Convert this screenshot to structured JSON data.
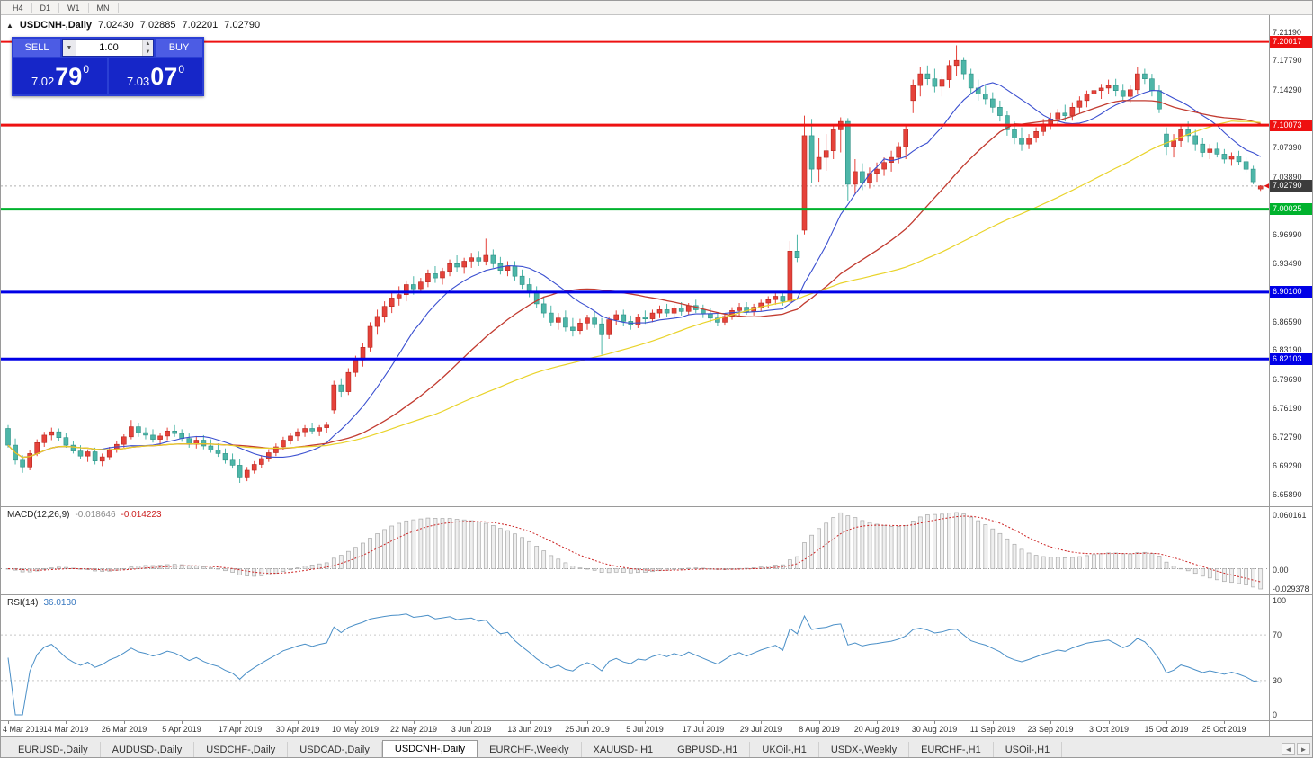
{
  "toolbar": {
    "timeframes": [
      "H4",
      "D1",
      "W1",
      "MN"
    ]
  },
  "icons": {
    "symbol_arrow": "▲",
    "spinner_up": "▲",
    "spinner_down": "▼",
    "dropdown": "▼",
    "tab_scroll_left": "◄",
    "tab_scroll_right": "►"
  },
  "chart_header": {
    "symbol_label": "USDCNH-,Daily",
    "open": "7.02430",
    "high": "7.02885",
    "low": "7.02201",
    "close": "7.02790"
  },
  "trade_panel": {
    "sell_label": "SELL",
    "buy_label": "BUY",
    "volume": "1.00",
    "sell_price": {
      "prefix": "7.02",
      "big": "79",
      "sup": "0"
    },
    "buy_price": {
      "prefix": "7.03",
      "big": "07",
      "sup": "0"
    }
  },
  "macd_panel": {
    "label": "MACD(12,26,9)",
    "value1": "-0.018646",
    "value2": "-0.014223",
    "axis": [
      "0.060161",
      "0.00",
      "-0.029378"
    ]
  },
  "rsi_panel": {
    "label": "RSI(14)",
    "value": "36.0130",
    "axis": [
      "100",
      "70",
      "30",
      "0"
    ],
    "levels": [
      70,
      30
    ]
  },
  "date_axis": {
    "tick_step": 8,
    "ticks": [
      "4 Mar 2019",
      "14 Mar 2019",
      "26 Mar 2019",
      "5 Apr 2019",
      "17 Apr 2019",
      "30 Apr 2019",
      "10 May 2019",
      "22 May 2019",
      "3 Jun 2019",
      "13 Jun 2019",
      "25 Jun 2019",
      "5 Jul 2019",
      "17 Jul 2019",
      "29 Jul 2019",
      "8 Aug 2019",
      "20 Aug 2019",
      "30 Aug 2019",
      "11 Sep 2019",
      "23 Sep 2019",
      "3 Oct 2019",
      "15 Oct 2019",
      "25 Oct 2019"
    ]
  },
  "tabs": {
    "items": [
      {
        "label": "EURUSD-,Daily",
        "active": false
      },
      {
        "label": "AUDUSD-,Daily",
        "active": false
      },
      {
        "label": "USDCHF-,Daily",
        "active": false
      },
      {
        "label": "USDCAD-,Daily",
        "active": false
      },
      {
        "label": "USDCNH-,Daily",
        "active": true
      },
      {
        "label": "EURCHF-,Weekly",
        "active": false
      },
      {
        "label": "XAUUSD-,H1",
        "active": false
      },
      {
        "label": "GBPUSD-,H1",
        "active": false
      },
      {
        "label": "UKOil-,H1",
        "active": false
      },
      {
        "label": "USDX-,Weekly",
        "active": false
      },
      {
        "label": "EURCHF-,H1",
        "active": false
      },
      {
        "label": "USOil-,H1",
        "active": false
      }
    ]
  },
  "chart_data": {
    "type": "candlestick",
    "symbol": "USDCNH-,Daily",
    "ohlc_header": {
      "open": 7.0243,
      "high": 7.02885,
      "low": 7.02201,
      "close": 7.0279
    },
    "y_range": [
      6.645,
      7.232
    ],
    "axis_labels": [
      "7.21190",
      "7.17790",
      "7.14290",
      "7.07390",
      "7.03890",
      "6.96990",
      "6.93490",
      "6.86590",
      "6.83190",
      "6.79690",
      "6.76190",
      "6.72790",
      "6.69290",
      "6.65890"
    ],
    "levels": [
      {
        "price": 7.20017,
        "text": "7.20017",
        "color": "#ee1111",
        "width": 2
      },
      {
        "price": 7.10073,
        "text": "7.10073",
        "color": "#ee1111",
        "width": 3
      },
      {
        "price": 7.00025,
        "text": "7.00025",
        "color": "#00b22d",
        "width": 3
      },
      {
        "price": 6.901,
        "text": "6.90100",
        "color": "#0000e6",
        "width": 3
      },
      {
        "price": 6.82103,
        "text": "6.82103",
        "color": "#0000e6",
        "width": 3
      }
    ],
    "current_price": {
      "price": 7.0279,
      "text": "7.02790",
      "badge_color": "#3c3c3c",
      "line_color": "#b0b0b0"
    },
    "colors": {
      "bull": "#e5423a",
      "bull_border": "#b5271f",
      "bear": "#4db6a8",
      "bear_border": "#2d8f84"
    },
    "moving_averages": [
      {
        "period": 12,
        "color": "#3a4fd0",
        "width": 1.1
      },
      {
        "period": 30,
        "color": "#c23b30",
        "width": 1.3
      },
      {
        "period": 60,
        "color": "#e9d32a",
        "width": 1.2
      }
    ],
    "indicators": {
      "macd": {
        "fast": 12,
        "slow": 26,
        "signal": 9,
        "current": -0.018646,
        "signal_current": -0.014223
      },
      "rsi": {
        "period": 14,
        "current": 36.013
      }
    },
    "candles": [
      [
        6.738,
        6.742,
        6.715,
        6.718
      ],
      [
        6.718,
        6.726,
        6.695,
        6.7
      ],
      [
        6.7,
        6.706,
        6.685,
        6.692
      ],
      [
        6.692,
        6.712,
        6.688,
        6.708
      ],
      [
        6.708,
        6.725,
        6.705,
        6.721
      ],
      [
        6.721,
        6.734,
        6.716,
        6.73
      ],
      [
        6.73,
        6.739,
        6.724,
        6.734
      ],
      [
        6.734,
        6.738,
        6.723,
        6.727
      ],
      [
        6.727,
        6.733,
        6.715,
        6.718
      ],
      [
        6.718,
        6.723,
        6.708,
        6.711
      ],
      [
        6.711,
        6.718,
        6.701,
        6.705
      ],
      [
        6.705,
        6.713,
        6.698,
        6.71
      ],
      [
        6.71,
        6.715,
        6.695,
        6.699
      ],
      [
        6.699,
        6.708,
        6.693,
        6.704
      ],
      [
        6.704,
        6.716,
        6.7,
        6.713
      ],
      [
        6.713,
        6.723,
        6.709,
        6.719
      ],
      [
        6.719,
        6.731,
        6.715,
        6.728
      ],
      [
        6.728,
        6.748,
        6.725,
        6.74
      ],
      [
        6.74,
        6.745,
        6.728,
        6.733
      ],
      [
        6.733,
        6.739,
        6.725,
        6.73
      ],
      [
        6.73,
        6.737,
        6.721,
        6.725
      ],
      [
        6.725,
        6.733,
        6.718,
        6.729
      ],
      [
        6.729,
        6.739,
        6.724,
        6.735
      ],
      [
        6.735,
        6.742,
        6.728,
        6.732
      ],
      [
        6.732,
        6.737,
        6.722,
        6.726
      ],
      [
        6.726,
        6.732,
        6.715,
        6.719
      ],
      [
        6.719,
        6.729,
        6.714,
        6.724
      ],
      [
        6.724,
        6.73,
        6.713,
        6.717
      ],
      [
        6.717,
        6.725,
        6.709,
        6.712
      ],
      [
        6.712,
        6.72,
        6.704,
        6.708
      ],
      [
        6.708,
        6.714,
        6.696,
        6.7
      ],
      [
        6.7,
        6.708,
        6.69,
        6.694
      ],
      [
        6.694,
        6.701,
        6.673,
        6.679
      ],
      [
        6.679,
        6.692,
        6.675,
        6.688
      ],
      [
        6.688,
        6.699,
        6.684,
        6.695
      ],
      [
        6.695,
        6.706,
        6.691,
        6.702
      ],
      [
        6.702,
        6.713,
        6.698,
        6.709
      ],
      [
        6.709,
        6.72,
        6.705,
        6.716
      ],
      [
        6.716,
        6.728,
        6.712,
        6.724
      ],
      [
        6.724,
        6.733,
        6.719,
        6.729
      ],
      [
        6.729,
        6.738,
        6.723,
        6.734
      ],
      [
        6.734,
        6.742,
        6.728,
        6.738
      ],
      [
        6.738,
        6.745,
        6.731,
        6.735
      ],
      [
        6.735,
        6.742,
        6.729,
        6.739
      ],
      [
        6.739,
        6.746,
        6.733,
        6.742
      ],
      [
        6.76,
        6.795,
        6.756,
        6.79
      ],
      [
        6.79,
        6.798,
        6.775,
        6.782
      ],
      [
        6.782,
        6.81,
        6.778,
        6.805
      ],
      [
        6.805,
        6.825,
        6.8,
        6.82
      ],
      [
        6.82,
        6.84,
        6.812,
        6.835
      ],
      [
        6.835,
        6.865,
        6.83,
        6.86
      ],
      [
        6.86,
        6.88,
        6.85,
        6.872
      ],
      [
        6.872,
        6.89,
        6.865,
        6.884
      ],
      [
        6.884,
        6.9,
        6.876,
        6.894
      ],
      [
        6.894,
        6.908,
        6.885,
        6.898
      ],
      [
        6.898,
        6.915,
        6.89,
        6.91
      ],
      [
        6.91,
        6.92,
        6.898,
        6.905
      ],
      [
        6.905,
        6.918,
        6.9,
        6.913
      ],
      [
        6.913,
        6.928,
        6.907,
        6.923
      ],
      [
        6.923,
        6.932,
        6.912,
        6.918
      ],
      [
        6.918,
        6.93,
        6.91,
        6.926
      ],
      [
        6.926,
        6.94,
        6.92,
        6.935
      ],
      [
        6.935,
        6.945,
        6.925,
        6.931
      ],
      [
        6.931,
        6.942,
        6.923,
        6.938
      ],
      [
        6.938,
        6.948,
        6.93,
        6.942
      ],
      [
        6.942,
        6.95,
        6.932,
        6.938
      ],
      [
        6.938,
        6.965,
        6.933,
        6.945
      ],
      [
        6.945,
        6.952,
        6.93,
        6.935
      ],
      [
        6.935,
        6.943,
        6.922,
        6.927
      ],
      [
        6.927,
        6.938,
        6.92,
        6.932
      ],
      [
        6.932,
        6.938,
        6.915,
        6.92
      ],
      [
        6.92,
        6.928,
        6.905,
        6.91
      ],
      [
        6.91,
        6.918,
        6.895,
        6.9
      ],
      [
        6.9,
        6.908,
        6.882,
        6.887
      ],
      [
        6.887,
        6.895,
        6.87,
        6.876
      ],
      [
        6.876,
        6.885,
        6.86,
        6.865
      ],
      [
        6.865,
        6.876,
        6.856,
        6.87
      ],
      [
        6.87,
        6.879,
        6.854,
        6.859
      ],
      [
        6.859,
        6.87,
        6.848,
        6.855
      ],
      [
        6.855,
        6.869,
        6.85,
        6.864
      ],
      [
        6.864,
        6.874,
        6.856,
        6.87
      ],
      [
        6.87,
        6.878,
        6.858,
        6.863
      ],
      [
        6.863,
        6.87,
        6.826,
        6.85
      ],
      [
        6.85,
        6.872,
        6.845,
        6.868
      ],
      [
        6.868,
        6.879,
        6.862,
        6.874
      ],
      [
        6.874,
        6.88,
        6.86,
        6.866
      ],
      [
        6.866,
        6.873,
        6.856,
        6.862
      ],
      [
        6.862,
        6.875,
        6.858,
        6.871
      ],
      [
        6.871,
        6.879,
        6.863,
        6.869
      ],
      [
        6.869,
        6.88,
        6.865,
        6.876
      ],
      [
        6.876,
        6.885,
        6.87,
        6.88
      ],
      [
        6.88,
        6.887,
        6.871,
        6.876
      ],
      [
        6.876,
        6.886,
        6.872,
        6.882
      ],
      [
        6.882,
        6.889,
        6.873,
        6.878
      ],
      [
        6.878,
        6.888,
        6.874,
        6.885
      ],
      [
        6.885,
        6.892,
        6.876,
        6.88
      ],
      [
        6.88,
        6.886,
        6.87,
        6.875
      ],
      [
        6.875,
        6.882,
        6.865,
        6.87
      ],
      [
        6.87,
        6.877,
        6.86,
        6.865
      ],
      [
        6.865,
        6.876,
        6.861,
        6.872
      ],
      [
        6.872,
        6.883,
        6.868,
        6.879
      ],
      [
        6.879,
        6.888,
        6.872,
        6.883
      ],
      [
        6.883,
        6.889,
        6.874,
        6.878
      ],
      [
        6.878,
        6.887,
        6.873,
        6.883
      ],
      [
        6.883,
        6.892,
        6.878,
        6.888
      ],
      [
        6.888,
        6.896,
        6.882,
        6.892
      ],
      [
        6.892,
        6.9,
        6.886,
        6.896
      ],
      [
        6.896,
        6.902,
        6.885,
        6.89
      ],
      [
        6.89,
        6.962,
        6.888,
        6.95
      ],
      [
        6.95,
        6.97,
        6.937,
        6.942
      ],
      [
        6.975,
        7.112,
        6.97,
        7.088
      ],
      [
        7.088,
        7.108,
        7.032,
        7.048
      ],
      [
        7.048,
        7.085,
        7.033,
        7.062
      ],
      [
        7.062,
        7.09,
        7.046,
        7.07
      ],
      [
        7.07,
        7.1,
        7.06,
        7.095
      ],
      [
        7.095,
        7.11,
        7.068,
        7.105
      ],
      [
        7.105,
        7.109,
        7.01,
        7.03
      ],
      [
        7.03,
        7.06,
        7.018,
        7.045
      ],
      [
        7.045,
        7.055,
        7.023,
        7.032
      ],
      [
        7.032,
        7.05,
        7.025,
        7.043
      ],
      [
        7.043,
        7.056,
        7.033,
        7.048
      ],
      [
        7.048,
        7.062,
        7.04,
        7.056
      ],
      [
        7.056,
        7.07,
        7.045,
        7.062
      ],
      [
        7.062,
        7.08,
        7.055,
        7.075
      ],
      [
        7.075,
        7.1,
        7.06,
        7.096
      ],
      [
        7.13,
        7.155,
        7.115,
        7.148
      ],
      [
        7.148,
        7.17,
        7.135,
        7.162
      ],
      [
        7.162,
        7.172,
        7.148,
        7.156
      ],
      [
        7.156,
        7.168,
        7.14,
        7.147
      ],
      [
        7.147,
        7.16,
        7.135,
        7.155
      ],
      [
        7.155,
        7.178,
        7.145,
        7.172
      ],
      [
        7.172,
        7.196,
        7.16,
        7.178
      ],
      [
        7.178,
        7.182,
        7.155,
        7.162
      ],
      [
        7.162,
        7.168,
        7.138,
        7.145
      ],
      [
        7.145,
        7.155,
        7.13,
        7.138
      ],
      [
        7.138,
        7.148,
        7.125,
        7.132
      ],
      [
        7.132,
        7.14,
        7.115,
        7.122
      ],
      [
        7.122,
        7.13,
        7.105,
        7.112
      ],
      [
        7.112,
        7.118,
        7.088,
        7.095
      ],
      [
        7.095,
        7.105,
        7.078,
        7.085
      ],
      [
        7.085,
        7.098,
        7.07,
        7.078
      ],
      [
        7.078,
        7.09,
        7.072,
        7.085
      ],
      [
        7.085,
        7.098,
        7.08,
        7.093
      ],
      [
        7.093,
        7.108,
        7.088,
        7.102
      ],
      [
        7.102,
        7.115,
        7.095,
        7.108
      ],
      [
        7.108,
        7.12,
        7.1,
        7.115
      ],
      [
        7.115,
        7.125,
        7.105,
        7.112
      ],
      [
        7.112,
        7.128,
        7.106,
        7.122
      ],
      [
        7.122,
        7.135,
        7.115,
        7.13
      ],
      [
        7.13,
        7.142,
        7.122,
        7.138
      ],
      [
        7.138,
        7.148,
        7.13,
        7.142
      ],
      [
        7.142,
        7.15,
        7.132,
        7.145
      ],
      [
        7.145,
        7.155,
        7.138,
        7.148
      ],
      [
        7.148,
        7.156,
        7.135,
        7.142
      ],
      [
        7.142,
        7.15,
        7.13,
        7.135
      ],
      [
        7.135,
        7.148,
        7.128,
        7.143
      ],
      [
        7.143,
        7.17,
        7.138,
        7.162
      ],
      [
        7.162,
        7.168,
        7.15,
        7.156
      ],
      [
        7.156,
        7.162,
        7.135,
        7.142
      ],
      [
        7.142,
        7.148,
        7.115,
        7.12
      ],
      [
        7.09,
        7.098,
        7.065,
        7.075
      ],
      [
        7.075,
        7.09,
        7.062,
        7.082
      ],
      [
        7.082,
        7.1,
        7.075,
        7.095
      ],
      [
        7.095,
        7.105,
        7.08,
        7.088
      ],
      [
        7.088,
        7.095,
        7.07,
        7.078
      ],
      [
        7.078,
        7.085,
        7.062,
        7.068
      ],
      [
        7.068,
        7.078,
        7.06,
        7.072
      ],
      [
        7.072,
        7.08,
        7.062,
        7.066
      ],
      [
        7.066,
        7.072,
        7.055,
        7.06
      ],
      [
        7.06,
        7.068,
        7.052,
        7.064
      ],
      [
        7.064,
        7.07,
        7.053,
        7.057
      ],
      [
        7.057,
        7.062,
        7.044,
        7.048
      ],
      [
        7.048,
        7.052,
        7.03,
        7.033
      ],
      [
        7.0243,
        7.02885,
        7.02201,
        7.0279
      ]
    ]
  }
}
